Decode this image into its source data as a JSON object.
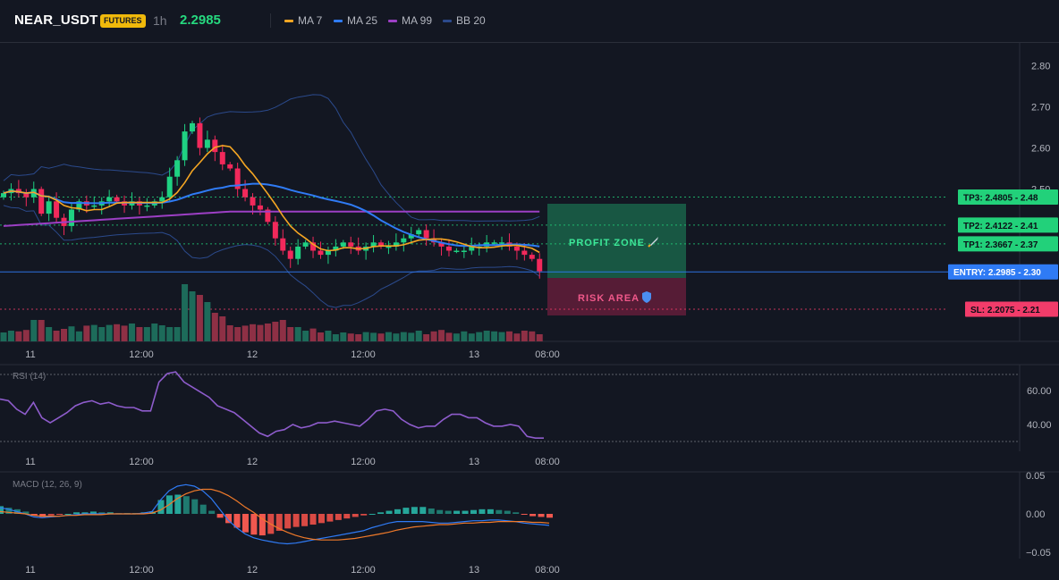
{
  "header": {
    "symbol": "NEAR_USDT",
    "badge": "FUTURES",
    "timeframe": "1h",
    "price": "2.2985",
    "legend": [
      {
        "label": "MA 7",
        "color": "#f5a623"
      },
      {
        "label": "MA 25",
        "color": "#2f7bf5"
      },
      {
        "label": "MA 99",
        "color": "#9c3fc4"
      },
      {
        "label": "BB 20",
        "color": "#2b4a8c"
      }
    ]
  },
  "chart_data": [
    {
      "type": "candlestick",
      "title": "NEAR_USDT",
      "interval": "1h",
      "y_ticks": [
        "2.80",
        "2.70",
        "2.60",
        "2.50"
      ],
      "ylim": [
        2.15,
        2.85
      ],
      "x_ticks": [
        "11",
        "12:00",
        "12",
        "12:00",
        "13",
        "08:00"
      ],
      "close": [
        2.49,
        2.5,
        2.49,
        2.48,
        2.5,
        2.44,
        2.47,
        2.43,
        2.41,
        2.45,
        2.47,
        2.46,
        2.46,
        2.47,
        2.48,
        2.47,
        2.46,
        2.47,
        2.46,
        2.46,
        2.47,
        2.48,
        2.53,
        2.57,
        2.64,
        2.66,
        2.6,
        2.62,
        2.59,
        2.56,
        2.55,
        2.5,
        2.48,
        2.46,
        2.45,
        2.42,
        2.38,
        2.35,
        2.33,
        2.36,
        2.37,
        2.35,
        2.34,
        2.35,
        2.36,
        2.37,
        2.36,
        2.35,
        2.36,
        2.37,
        2.36,
        2.36,
        2.37,
        2.38,
        2.39,
        2.4,
        2.38,
        2.37,
        2.36,
        2.35,
        2.35,
        2.35,
        2.36,
        2.36,
        2.37,
        2.37,
        2.37,
        2.36,
        2.35,
        2.34,
        2.33,
        2.3
      ],
      "sl_level": 2.2075,
      "series": [
        {
          "name": "MA 7"
        },
        {
          "name": "MA 25"
        },
        {
          "name": "MA 99"
        },
        {
          "name": "BB 20"
        }
      ],
      "levels": [
        {
          "label": "TP3: 2.4805",
          "value": 2.4805,
          "tag": "2.48",
          "color": "#22d17a"
        },
        {
          "label": "TP2: 2.4122",
          "value": 2.4122,
          "tag": "2.41",
          "color": "#22d17a"
        },
        {
          "label": "TP1: 2.3667",
          "value": 2.3667,
          "tag": "2.37",
          "color": "#22d17a"
        },
        {
          "label": "ENTRY: 2.2985",
          "value": 2.2985,
          "tag": "2.30",
          "color": "#2f7bf5"
        },
        {
          "label": "SL: 2.2075",
          "value": 2.2075,
          "tag": "2.21",
          "color": "#f23c6a"
        }
      ],
      "zones": {
        "profit_label": "PROFIT ZONE",
        "profit_icon": "rocket-icon",
        "risk_label": "RISK AREA",
        "risk_icon": "shield-icon"
      },
      "volume": [
        0.25,
        0.3,
        0.28,
        0.32,
        0.6,
        0.6,
        0.4,
        0.3,
        0.35,
        0.42,
        0.28,
        0.44,
        0.46,
        0.4,
        0.46,
        0.48,
        0.44,
        0.5,
        0.4,
        0.4,
        0.5,
        0.45,
        0.4,
        0.4,
        1.6,
        1.4,
        1.3,
        1.1,
        0.8,
        0.7,
        0.45,
        0.4,
        0.44,
        0.48,
        0.46,
        0.5,
        0.55,
        0.6,
        0.4,
        0.4,
        0.3,
        0.36,
        0.25,
        0.3,
        0.2,
        0.25,
        0.22,
        0.2,
        0.26,
        0.24,
        0.22,
        0.26,
        0.22,
        0.26,
        0.24,
        0.3,
        0.2,
        0.28,
        0.32,
        0.24,
        0.22,
        0.28,
        0.22,
        0.26,
        0.3,
        0.28,
        0.26,
        0.28,
        0.22,
        0.3,
        0.28,
        0.2
      ]
    },
    {
      "type": "line",
      "title": "RSI (14)",
      "y_ticks": [
        "60.00",
        "40.00"
      ],
      "ylim": [
        28,
        78
      ],
      "x_ticks": [
        "11",
        "12:00",
        "12",
        "12:00",
        "13",
        "08:00"
      ],
      "series": [
        {
          "name": "RSI",
          "values": [
            55,
            54,
            49,
            46,
            53,
            44,
            41,
            44,
            47,
            51,
            53,
            54,
            52,
            53,
            51,
            50,
            50,
            48,
            48,
            65,
            70,
            71,
            65,
            62,
            59,
            56,
            51,
            49,
            47,
            43,
            39,
            35,
            33,
            36,
            37,
            40,
            38,
            39,
            41,
            41,
            42,
            41,
            40,
            39,
            43,
            48,
            49,
            48,
            43,
            40,
            38,
            39,
            39,
            43,
            46,
            46,
            44,
            44,
            41,
            39,
            39,
            40,
            39,
            33,
            32,
            32
          ]
        }
      ]
    },
    {
      "type": "bar",
      "title": "MACD (12, 26, 9)",
      "y_ticks": [
        "0.05",
        "0.00",
        "−0.05"
      ],
      "ylim": [
        -0.065,
        0.07
      ],
      "x_ticks": [
        "11",
        "12:00",
        "12",
        "12:00",
        "13",
        "08:00"
      ],
      "series": [
        {
          "name": "histogram",
          "values": [
            0.01,
            0.008,
            0.006,
            0.003,
            -0.002,
            -0.004,
            -0.002,
            -0.001,
            0.0,
            0.002,
            0.002,
            0.003,
            0.002,
            0.002,
            0.001,
            0.001,
            0.001,
            0.002,
            0.003,
            0.018,
            0.024,
            0.025,
            0.023,
            0.019,
            0.012,
            0.004,
            -0.005,
            -0.012,
            -0.018,
            -0.024,
            -0.027,
            -0.028,
            -0.026,
            -0.022,
            -0.019,
            -0.017,
            -0.016,
            -0.014,
            -0.012,
            -0.01,
            -0.008,
            -0.006,
            -0.004,
            -0.002,
            0.0,
            0.002,
            0.004,
            0.006,
            0.008,
            0.009,
            0.009,
            0.007,
            0.005,
            0.004,
            0.004,
            0.004,
            0.005,
            0.006,
            0.006,
            0.005,
            0.004,
            0.002,
            -0.001,
            -0.003,
            -0.004,
            -0.005
          ]
        },
        {
          "name": "MACD",
          "values": [
            0.008,
            0.006,
            0.003,
            0.0,
            -0.004,
            -0.005,
            -0.004,
            -0.003,
            -0.002,
            -0.001,
            0.0,
            0.0,
            0.0,
            0.0,
            0.0,
            0.0,
            0.0,
            0.001,
            0.003,
            0.018,
            0.03,
            0.036,
            0.038,
            0.036,
            0.03,
            0.02,
            0.006,
            -0.008,
            -0.018,
            -0.026,
            -0.031,
            -0.034,
            -0.036,
            -0.038,
            -0.039,
            -0.038,
            -0.036,
            -0.034,
            -0.032,
            -0.03,
            -0.028,
            -0.026,
            -0.024,
            -0.022,
            -0.018,
            -0.015,
            -0.012,
            -0.01,
            -0.01,
            -0.01,
            -0.01,
            -0.011,
            -0.012,
            -0.012,
            -0.011,
            -0.01,
            -0.009,
            -0.009,
            -0.008,
            -0.008,
            -0.009,
            -0.01,
            -0.012,
            -0.013,
            -0.014,
            -0.015
          ]
        },
        {
          "name": "Signal",
          "values": [
            0.003,
            0.002,
            0.001,
            0.0,
            -0.002,
            -0.003,
            -0.003,
            -0.003,
            -0.002,
            -0.002,
            -0.001,
            -0.001,
            -0.001,
            0.0,
            0.0,
            0.0,
            0.0,
            0.0,
            0.001,
            0.005,
            0.012,
            0.02,
            0.026,
            0.03,
            0.032,
            0.032,
            0.029,
            0.024,
            0.017,
            0.009,
            0.002,
            -0.006,
            -0.013,
            -0.019,
            -0.024,
            -0.028,
            -0.031,
            -0.033,
            -0.034,
            -0.034,
            -0.034,
            -0.033,
            -0.032,
            -0.03,
            -0.028,
            -0.026,
            -0.024,
            -0.021,
            -0.019,
            -0.017,
            -0.016,
            -0.015,
            -0.014,
            -0.014,
            -0.013,
            -0.012,
            -0.012,
            -0.011,
            -0.011,
            -0.01,
            -0.01,
            -0.01,
            -0.01,
            -0.011,
            -0.011,
            -0.012
          ]
        }
      ]
    }
  ]
}
